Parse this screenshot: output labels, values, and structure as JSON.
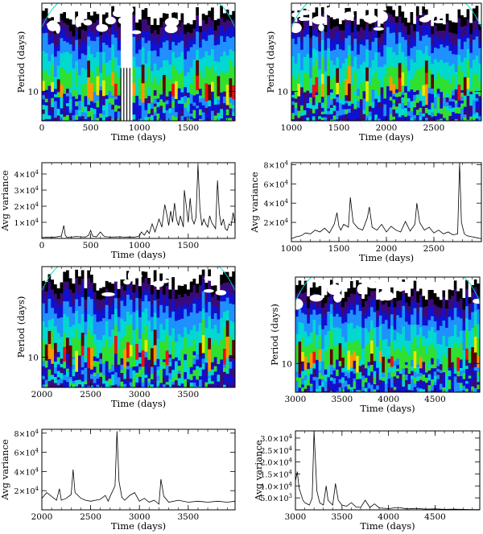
{
  "colors": {
    "scale": [
      "#000000",
      "#3a0a78",
      "#1010d0",
      "#1e90ff",
      "#00d8d0",
      "#30e030",
      "#e8e800",
      "#ff9800",
      "#f01010",
      "#600000"
    ],
    "curve": "#000000",
    "coi": "#00d8c0"
  },
  "chart_data": [
    {
      "type": "heatmap",
      "panel": "wavelet-a",
      "xlabel": "Time (days)",
      "ylabel": "Period (days)",
      "xlim": [
        0,
        1980
      ],
      "xticks": [
        "0",
        "500",
        "1000",
        "1500"
      ],
      "ytick": "10",
      "gap": [
        790,
        935
      ]
    },
    {
      "type": "heatmap",
      "panel": "wavelet-b",
      "xlabel": "Time (days)",
      "ylabel": "Period (days)",
      "xlim": [
        1000,
        3000
      ],
      "xticks": [
        "1000",
        "1500",
        "2000",
        "2500"
      ],
      "ytick": "10",
      "gap": null
    },
    {
      "type": "line",
      "panel": "variance-a",
      "xlabel": "Time (days)",
      "ylabel": "Avg variance",
      "xlim": [
        0,
        1980
      ],
      "ylim": [
        0,
        47000
      ],
      "xticks": [
        "0",
        "500",
        "1000",
        "1500"
      ],
      "yticks": [
        {
          "v": 10000,
          "m": "1×10",
          "e": "4"
        },
        {
          "v": 20000,
          "m": "2×10",
          "e": "4"
        },
        {
          "v": 30000,
          "m": "3×10",
          "e": "4"
        },
        {
          "v": 40000,
          "m": "4×10",
          "e": "4"
        }
      ],
      "x": [
        0,
        50,
        100,
        150,
        200,
        225,
        240,
        255,
        300,
        350,
        400,
        450,
        480,
        500,
        520,
        560,
        600,
        620,
        640,
        700,
        750,
        800,
        850,
        900,
        950,
        1000,
        1020,
        1050,
        1080,
        1100,
        1130,
        1160,
        1200,
        1230,
        1260,
        1280,
        1300,
        1320,
        1340,
        1360,
        1380,
        1400,
        1420,
        1450,
        1460,
        1480,
        1500,
        1520,
        1540,
        1560,
        1580,
        1600,
        1620,
        1640,
        1660,
        1680,
        1700,
        1720,
        1740,
        1760,
        1780,
        1800,
        1820,
        1840,
        1860,
        1880,
        1900,
        1920,
        1940,
        1960,
        1980
      ],
      "y": [
        500,
        800,
        600,
        900,
        1500,
        8000,
        2000,
        700,
        800,
        1200,
        1000,
        900,
        2000,
        5000,
        1500,
        1000,
        4000,
        2500,
        1200,
        800,
        900,
        1000,
        800,
        900,
        800,
        1500,
        4000,
        2000,
        5000,
        3000,
        9000,
        4000,
        12000,
        7000,
        21000,
        15000,
        8000,
        17000,
        10000,
        22000,
        12000,
        8000,
        14000,
        7000,
        30000,
        20000,
        10000,
        25000,
        12000,
        9000,
        13000,
        46000,
        18000,
        8000,
        12000,
        9000,
        7000,
        14000,
        10000,
        8000,
        6000,
        36000,
        15000,
        8000,
        12000,
        6000,
        5000,
        9000,
        8000,
        16000,
        9000
      ]
    },
    {
      "type": "line",
      "panel": "variance-b",
      "xlabel": "Time (days)",
      "ylabel": "Avg variance",
      "xlim": [
        1000,
        3000
      ],
      "ylim": [
        0,
        82000
      ],
      "xticks": [
        "1000",
        "1500",
        "2000",
        "2500"
      ],
      "yticks": [
        {
          "v": 20000,
          "m": "2×10",
          "e": "4"
        },
        {
          "v": 40000,
          "m": "4×10",
          "e": "4"
        },
        {
          "v": 60000,
          "m": "6×10",
          "e": "4"
        },
        {
          "v": 80000,
          "m": "8×10",
          "e": "4"
        }
      ],
      "x": [
        1000,
        1050,
        1100,
        1150,
        1200,
        1250,
        1300,
        1350,
        1400,
        1450,
        1480,
        1500,
        1520,
        1550,
        1600,
        1620,
        1650,
        1700,
        1750,
        1800,
        1820,
        1850,
        1900,
        1950,
        2000,
        2050,
        2100,
        2150,
        2200,
        2250,
        2300,
        2320,
        2350,
        2400,
        2450,
        2500,
        2550,
        2600,
        2650,
        2700,
        2750,
        2770,
        2790,
        2820,
        2850,
        2900,
        2950,
        3000
      ],
      "y": [
        3000,
        5000,
        6000,
        9000,
        8000,
        12000,
        10000,
        14000,
        9000,
        18000,
        30000,
        16000,
        12000,
        18000,
        15000,
        46000,
        20000,
        14000,
        12000,
        25000,
        36000,
        15000,
        12000,
        18000,
        10000,
        16000,
        12000,
        10000,
        21000,
        11000,
        18000,
        40000,
        20000,
        12000,
        15000,
        9000,
        12000,
        8000,
        10000,
        7000,
        8000,
        82000,
        20000,
        8000,
        6000,
        5000,
        4000,
        3000
      ]
    },
    {
      "type": "heatmap",
      "panel": "wavelet-c",
      "xlabel": "Time (days)",
      "ylabel": "Period (days)",
      "xlim": [
        2000,
        3980
      ],
      "xticks": [
        "2000",
        "2500",
        "3000",
        "3500"
      ],
      "ytick": "10",
      "gap": null
    },
    {
      "type": "heatmap",
      "panel": "wavelet-d",
      "xlabel": "Time (days)",
      "ylabel": "Period (days)",
      "xlim": [
        3000,
        4980
      ],
      "xticks": [
        "3000",
        "3500",
        "4000",
        "4500"
      ],
      "ytick": "10",
      "gap": null
    },
    {
      "type": "line",
      "panel": "variance-c",
      "xlabel": "Time (days)",
      "ylabel": "Avg variance",
      "xlim": [
        2000,
        3980
      ],
      "ylim": [
        0,
        84000
      ],
      "xticks": [
        "2000",
        "2500",
        "3000",
        "3500"
      ],
      "yticks": [
        {
          "v": 20000,
          "m": "2×10",
          "e": "4"
        },
        {
          "v": 40000,
          "m": "4×10",
          "e": "4"
        },
        {
          "v": 60000,
          "m": "6×10",
          "e": "4"
        },
        {
          "v": 80000,
          "m": "8×10",
          "e": "4"
        }
      ],
      "x": [
        2000,
        2050,
        2100,
        2150,
        2180,
        2200,
        2250,
        2300,
        2320,
        2340,
        2400,
        2450,
        2500,
        2550,
        2600,
        2650,
        2680,
        2700,
        2750,
        2770,
        2790,
        2820,
        2850,
        2900,
        2950,
        3000,
        3050,
        3100,
        3150,
        3200,
        3220,
        3250,
        3300,
        3400,
        3500,
        3600,
        3700,
        3800,
        3900,
        3980
      ],
      "y": [
        12000,
        18000,
        14000,
        10000,
        22000,
        10000,
        12000,
        16000,
        42000,
        18000,
        12000,
        10000,
        9000,
        10000,
        11000,
        15000,
        9000,
        14000,
        25000,
        82000,
        30000,
        13000,
        10000,
        15000,
        18000,
        9000,
        12000,
        8000,
        10000,
        6000,
        32000,
        14000,
        8000,
        10000,
        8000,
        9000,
        8000,
        9000,
        8000,
        9000
      ]
    },
    {
      "type": "line",
      "panel": "variance-d",
      "xlabel": "Time (days)",
      "ylabel": "Avg variance",
      "xlim": [
        3000,
        4980
      ],
      "ylim": [
        0,
        33000
      ],
      "xticks": [
        "3000",
        "3500",
        "4000",
        "4500"
      ],
      "yticks": [
        {
          "v": 5000,
          "m": "5.0×10",
          "e": "3"
        },
        {
          "v": 10000,
          "m": "1.0×10",
          "e": "4"
        },
        {
          "v": 15000,
          "m": "1.5×10",
          "e": "4"
        },
        {
          "v": 20000,
          "m": "2.0×10",
          "e": "4"
        },
        {
          "v": 25000,
          "m": "2.5×10",
          "e": "4"
        },
        {
          "v": 30000,
          "m": "3.0×10",
          "e": "4"
        }
      ],
      "x": [
        3000,
        3020,
        3040,
        3080,
        3100,
        3150,
        3180,
        3200,
        3230,
        3260,
        3300,
        3330,
        3350,
        3400,
        3430,
        3460,
        3500,
        3550,
        3600,
        3650,
        3700,
        3750,
        3800,
        3850,
        3900,
        4000,
        4100,
        4200,
        4300,
        4400,
        4500,
        4600,
        4700,
        4800,
        4900,
        4980
      ],
      "y": [
        12000,
        16000,
        9000,
        4000,
        3000,
        2000,
        5000,
        33000,
        8000,
        3000,
        2000,
        10000,
        4000,
        2000,
        11000,
        4000,
        2000,
        1500,
        3000,
        1200,
        1000,
        4000,
        1000,
        2500,
        800,
        500,
        1000,
        400,
        600,
        300,
        400,
        200,
        300,
        200,
        100,
        100
      ]
    }
  ]
}
